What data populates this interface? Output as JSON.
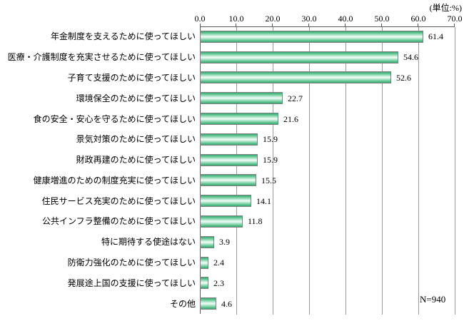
{
  "unit_label": "(単位:%)",
  "sample_label": "N=940",
  "chart_data": {
    "type": "bar",
    "orientation": "horizontal",
    "title": "",
    "unit": "%",
    "sample_size": 940,
    "xlim": [
      0,
      70
    ],
    "tick_interval": 10,
    "tick_labels": [
      "0.0",
      "10.0",
      "20.0",
      "30.0",
      "40.0",
      "50.0",
      "60.0",
      "70.0"
    ],
    "grid": true,
    "value_axis_position": "top",
    "categories": [
      "年金制度を支えるために使ってほしい",
      "医療・介護制度を充実させるために使ってほしい",
      "子育て支援のために使ってほしい",
      "環境保全のために使ってほしい",
      "食の安全・安心を守るために使ってほしい",
      "景気対策のために使ってほしい",
      "財政再建のために使ってほしい",
      "健康増進のための制度充実に使ってほしい",
      "住民サービス充実のために使ってほしい",
      "公共インフラ整備のために使ってほしい",
      "特に期待する使途はない",
      "防衛力強化のために使ってほしい",
      "発展途上国の支援に使ってほしい",
      "その他"
    ],
    "values": [
      61.4,
      54.6,
      52.6,
      22.7,
      21.6,
      15.9,
      15.9,
      15.5,
      14.1,
      11.8,
      3.9,
      2.4,
      2.3,
      4.6
    ]
  },
  "colors": {
    "bar_edge_green": "#3aa873",
    "bar_mid_green": "#57c08a",
    "bar_highlight": "#eefaf3",
    "bar_border": "#808080",
    "axis_line": "#595959",
    "gridline": "#9a9a9a",
    "text": "#000000",
    "background": "#ffffff"
  }
}
